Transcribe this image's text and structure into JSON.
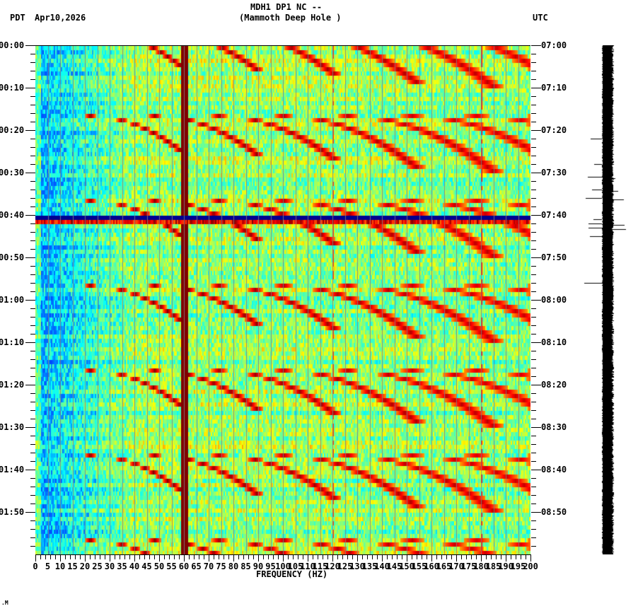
{
  "header": {
    "title_line1": "MDH1 DP1 NC --",
    "title_line2": "(Mammoth Deep Hole )",
    "left_timezone": "PDT",
    "date": "Apr10,2026",
    "right_timezone": "UTC"
  },
  "footer_mark": ".M",
  "chart_data": {
    "type": "heatmap",
    "title": "MDH1 DP1 NC -- (Mammoth Deep Hole )",
    "xlabel": "FREQUENCY (HZ)",
    "ylabel_left": "PDT",
    "ylabel_right": "UTC",
    "xlim": [
      0,
      200
    ],
    "x_ticks": [
      "0",
      "5",
      "10",
      "15",
      "20",
      "25",
      "30",
      "35",
      "40",
      "45",
      "50",
      "55",
      "60",
      "65",
      "70",
      "75",
      "80",
      "85",
      "90",
      "95",
      "100",
      "105",
      "110",
      "115",
      "120",
      "125",
      "130",
      "135",
      "140",
      "145",
      "150",
      "155",
      "160",
      "165",
      "170",
      "175",
      "180",
      "185",
      "190",
      "195",
      "200"
    ],
    "y_ticks_left": [
      "00:00",
      "00:10",
      "00:20",
      "00:30",
      "00:40",
      "00:50",
      "01:00",
      "01:10",
      "01:20",
      "01:30",
      "01:40",
      "01:50"
    ],
    "y_ticks_right": [
      "07:00",
      "07:10",
      "07:20",
      "07:30",
      "07:40",
      "07:50",
      "08:00",
      "08:10",
      "08:20",
      "08:30",
      "08:40",
      "08:50"
    ],
    "time_span_minutes": 120,
    "colormap": [
      "#00008f",
      "#0000ff",
      "#0080ff",
      "#00ffff",
      "#80ff80",
      "#ffff00",
      "#ff8000",
      "#ff0000",
      "#800000"
    ],
    "persistent_lines_hz": [
      60,
      120,
      180
    ],
    "data_gap_minute": 40,
    "sweep_period_minutes": 20,
    "sweep_starts_minutes": [
      -4,
      16,
      36,
      56,
      76,
      96,
      116
    ],
    "features": [
      {
        "name": "60 Hz power line",
        "freq_hz": 60,
        "intensity": "max"
      },
      {
        "name": "data gap",
        "time": "00:40 PDT",
        "color": "dark blue"
      },
      {
        "name": "harmonic sweeps",
        "description": "curved tonal arcs rising in frequency, repeating every ~20 min"
      }
    ]
  },
  "seismogram": {
    "label": "waveform trace",
    "spikes_minutes": [
      22,
      28,
      31,
      34,
      36,
      41,
      42,
      43,
      45,
      56
    ]
  }
}
